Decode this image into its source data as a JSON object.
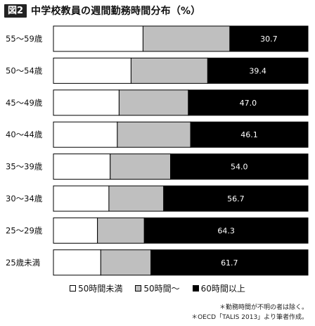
{
  "header": {
    "figure_label": "図2",
    "title": "中学校教員の週間勤務時間分布（%）"
  },
  "chart_data": {
    "type": "bar",
    "orientation": "horizontal",
    "stacked": true,
    "normalized": true,
    "xlim": [
      0,
      100
    ],
    "categories": [
      "55〜59歳",
      "50〜54歳",
      "45〜49歳",
      "40〜44歳",
      "35〜39歳",
      "30〜34歳",
      "25〜29歳",
      "25歳未満"
    ],
    "series": [
      {
        "name": "50時間未満",
        "color": "#ffffff",
        "values": [
          35.2,
          30.5,
          25.8,
          25.1,
          22.3,
          21.8,
          17.3,
          18.6
        ]
      },
      {
        "name": "50時間〜",
        "color": "#bfbfbf",
        "values": [
          34.1,
          30.1,
          27.2,
          28.8,
          23.7,
          21.5,
          18.4,
          19.7
        ]
      },
      {
        "name": "60時間以上",
        "color": "#000000",
        "values": [
          30.7,
          39.4,
          47.0,
          46.1,
          54.0,
          56.7,
          64.3,
          61.7
        ]
      }
    ],
    "data_labels": [
      "30.7",
      "39.4",
      "47.0",
      "46.1",
      "54.0",
      "56.7",
      "64.3",
      "61.7"
    ],
    "legend_position": "bottom"
  },
  "notes": [
    "＊勤務時間が不明の者は除く。",
    "＊OECD「TALIS 2013」より筆者作成。"
  ]
}
